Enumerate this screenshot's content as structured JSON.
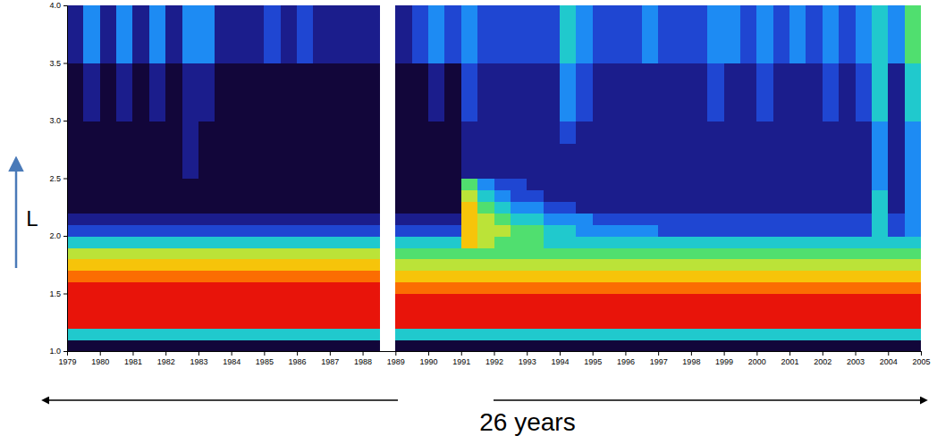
{
  "chart_data": {
    "type": "heatmap",
    "x": [
      1979,
      1979.5,
      1980,
      1980.5,
      1981,
      1981.5,
      1982,
      1982.5,
      1983,
      1983.5,
      1984,
      1984.5,
      1985,
      1985.5,
      1986,
      1986.5,
      1987,
      1987.5,
      1988,
      1988.5,
      1989,
      1989.5,
      1990,
      1990.5,
      1991,
      1991.5,
      1992,
      1992.5,
      1993,
      1993.5,
      1994,
      1994.5,
      1995,
      1995.5,
      1996,
      1996.5,
      1997,
      1997.5,
      1998,
      1998.5,
      1999,
      1999.5,
      2000,
      2000.5,
      2001,
      2001.5,
      2002,
      2002.5,
      2003,
      2003.5,
      2004,
      2004.5,
      2005
    ],
    "y": [
      1,
      1.1,
      1.2,
      1.3,
      1.4,
      1.5,
      1.6,
      1.7,
      1.8,
      1.9,
      2,
      2.1,
      2.2,
      2.3,
      2.4,
      2.5,
      2.6,
      2.7,
      2.8,
      2.9,
      3,
      3.1,
      3.2,
      3.3,
      3.4,
      3.5,
      3.6,
      3.7,
      3.8,
      3.9,
      4
    ],
    "values": [
      [
        0,
        0,
        0,
        0,
        0,
        0,
        0,
        0,
        0,
        0,
        0,
        0,
        0,
        0,
        0,
        0,
        0,
        0,
        0,
        null,
        0,
        0,
        0,
        0,
        0,
        0,
        0,
        0,
        0,
        0,
        0,
        0,
        0,
        0,
        0,
        0,
        0,
        0,
        0,
        0,
        0,
        0,
        0,
        0,
        0,
        0,
        0,
        0,
        0,
        0,
        0,
        0
      ],
      [
        4,
        4,
        4,
        4,
        4,
        4,
        4,
        4,
        4,
        4,
        4,
        4,
        4,
        4,
        4,
        4,
        4,
        4,
        4,
        null,
        4,
        4,
        4,
        4,
        4,
        4,
        4,
        4,
        4,
        4,
        4,
        4,
        4,
        4,
        4,
        4,
        4,
        4,
        4,
        4,
        4,
        4,
        4,
        4,
        4,
        4,
        4,
        4,
        4,
        4,
        4,
        4
      ],
      [
        9,
        9,
        9,
        9,
        9,
        9,
        9,
        9,
        9,
        9,
        9,
        9,
        9,
        9,
        9,
        9,
        9,
        9,
        9,
        null,
        9,
        9,
        9,
        9,
        9,
        9,
        9,
        9,
        9,
        9,
        9,
        9,
        9,
        9,
        9,
        9,
        9,
        9,
        9,
        9,
        9,
        9,
        9,
        9,
        9,
        9,
        9,
        9,
        9,
        9,
        9,
        9
      ],
      [
        9,
        9,
        9,
        9,
        9,
        9,
        9,
        9,
        9,
        9,
        9,
        9,
        9,
        9,
        9,
        9,
        9,
        9,
        9,
        null,
        9,
        9,
        9,
        9,
        9,
        9,
        9,
        9,
        9,
        9,
        9,
        9,
        9,
        9,
        9,
        9,
        9,
        9,
        9,
        9,
        9,
        9,
        9,
        9,
        9,
        9,
        9,
        9,
        9,
        9,
        9,
        9
      ],
      [
        9,
        9,
        9,
        9,
        9,
        9,
        9,
        9,
        9,
        9,
        9,
        9,
        9,
        9,
        9,
        9,
        9,
        9,
        9,
        null,
        9,
        9,
        9,
        9,
        9,
        9,
        9,
        9,
        9,
        9,
        9,
        9,
        9,
        9,
        9,
        9,
        9,
        9,
        9,
        9,
        9,
        9,
        9,
        9,
        9,
        9,
        9,
        9,
        9,
        9,
        9,
        9
      ],
      [
        9,
        9,
        9,
        9,
        9,
        9,
        9,
        9,
        9,
        9,
        9,
        9,
        9,
        9,
        9,
        9,
        9,
        9,
        9,
        null,
        8,
        8,
        8,
        8,
        8,
        8,
        8,
        8,
        8,
        8,
        8,
        8,
        8,
        8,
        8,
        8,
        8,
        8,
        8,
        8,
        8,
        8,
        8,
        8,
        8,
        8,
        8,
        8,
        8,
        8,
        8,
        8
      ],
      [
        8,
        8,
        8,
        8,
        8,
        8,
        8,
        8,
        8,
        8,
        8,
        8,
        8,
        8,
        8,
        8,
        8,
        8,
        8,
        null,
        7,
        7,
        7,
        7,
        7,
        7,
        7,
        7,
        7,
        7,
        7,
        7,
        7,
        7,
        7,
        7,
        7,
        7,
        7,
        7,
        7,
        7,
        7,
        7,
        7,
        7,
        7,
        7,
        7,
        7,
        7,
        7
      ],
      [
        7,
        7,
        7,
        7,
        7,
        7,
        7,
        7,
        7,
        7,
        7,
        7,
        7,
        7,
        7,
        7,
        7,
        7,
        7,
        null,
        6,
        6,
        6,
        6,
        6,
        6,
        6,
        6,
        6,
        6,
        6,
        6,
        6,
        6,
        6,
        6,
        6,
        6,
        6,
        6,
        6,
        6,
        6,
        6,
        6,
        6,
        6,
        6,
        6,
        6,
        6,
        6
      ],
      [
        6,
        6,
        6,
        6,
        6,
        6,
        6,
        6,
        6,
        6,
        6,
        6,
        6,
        6,
        6,
        6,
        6,
        6,
        6,
        null,
        5,
        5,
        5,
        5,
        5,
        5,
        5,
        5,
        5,
        5,
        5,
        5,
        5,
        5,
        5,
        5,
        5,
        5,
        5,
        5,
        5,
        5,
        5,
        5,
        5,
        5,
        5,
        5,
        5,
        5,
        5,
        5
      ],
      [
        4,
        4,
        4,
        4,
        4,
        4,
        4,
        4,
        4,
        4,
        4,
        4,
        4,
        4,
        4,
        4,
        4,
        4,
        4,
        null,
        4,
        4,
        4,
        4,
        7,
        6,
        5,
        5,
        5,
        4,
        4,
        4,
        4,
        4,
        4,
        4,
        4,
        4,
        4,
        4,
        4,
        4,
        4,
        4,
        4,
        4,
        4,
        4,
        4,
        4,
        4,
        4
      ],
      [
        2,
        2,
        2,
        2,
        2,
        2,
        2,
        2,
        2,
        2,
        2,
        2,
        2,
        2,
        2,
        2,
        2,
        2,
        2,
        null,
        2,
        2,
        2,
        2,
        7,
        6,
        6,
        5,
        5,
        4,
        4,
        3,
        3,
        3,
        3,
        3,
        2,
        2,
        2,
        2,
        2,
        2,
        2,
        2,
        2,
        2,
        2,
        2,
        2,
        4,
        2,
        3
      ],
      [
        1,
        1,
        1,
        1,
        1,
        1,
        1,
        1,
        1,
        1,
        1,
        1,
        1,
        1,
        1,
        1,
        1,
        1,
        1,
        null,
        1,
        1,
        1,
        1,
        7,
        6,
        5,
        4,
        4,
        3,
        3,
        3,
        2,
        2,
        2,
        2,
        2,
        2,
        2,
        2,
        2,
        2,
        2,
        2,
        2,
        2,
        2,
        2,
        2,
        4,
        2,
        3
      ],
      [
        0,
        0,
        0,
        0,
        0,
        0,
        0,
        0,
        0,
        0,
        0,
        0,
        0,
        0,
        0,
        0,
        0,
        0,
        0,
        null,
        0,
        0,
        0,
        0,
        7,
        5,
        4,
        3,
        3,
        2,
        2,
        1,
        1,
        1,
        1,
        1,
        1,
        1,
        1,
        1,
        1,
        1,
        1,
        1,
        1,
        1,
        1,
        1,
        1,
        4,
        1,
        3
      ],
      [
        0,
        0,
        0,
        0,
        0,
        0,
        0,
        0,
        0,
        0,
        0,
        0,
        0,
        0,
        0,
        0,
        0,
        0,
        0,
        null,
        0,
        0,
        0,
        0,
        6,
        4,
        3,
        2,
        2,
        1,
        1,
        1,
        1,
        1,
        1,
        1,
        1,
        1,
        1,
        1,
        1,
        1,
        1,
        1,
        1,
        1,
        1,
        1,
        1,
        4,
        1,
        3
      ],
      [
        0,
        0,
        0,
        0,
        0,
        0,
        0,
        0,
        0,
        0,
        0,
        0,
        0,
        0,
        0,
        0,
        0,
        0,
        0,
        null,
        0,
        0,
        0,
        0,
        5,
        3,
        2,
        2,
        1,
        1,
        1,
        1,
        1,
        1,
        1,
        1,
        1,
        1,
        1,
        1,
        1,
        1,
        1,
        1,
        1,
        1,
        1,
        1,
        1,
        3,
        1,
        3
      ],
      [
        0,
        0,
        0,
        0,
        0,
        0,
        0,
        1,
        0,
        0,
        0,
        0,
        0,
        0,
        0,
        0,
        0,
        0,
        0,
        null,
        0,
        0,
        0,
        0,
        1,
        1,
        1,
        1,
        1,
        1,
        1,
        1,
        1,
        1,
        1,
        1,
        1,
        1,
        1,
        1,
        1,
        1,
        1,
        1,
        1,
        1,
        1,
        1,
        1,
        3,
        1,
        3
      ],
      [
        0,
        0,
        0,
        0,
        0,
        0,
        0,
        1,
        0,
        0,
        0,
        0,
        0,
        0,
        0,
        0,
        0,
        0,
        0,
        null,
        0,
        0,
        0,
        0,
        1,
        1,
        1,
        1,
        1,
        1,
        1,
        1,
        1,
        1,
        1,
        1,
        1,
        1,
        1,
        1,
        1,
        1,
        1,
        1,
        1,
        1,
        1,
        1,
        1,
        3,
        1,
        3
      ],
      [
        0,
        0,
        0,
        0,
        0,
        0,
        0,
        1,
        0,
        0,
        0,
        0,
        0,
        0,
        0,
        0,
        0,
        0,
        0,
        null,
        0,
        0,
        0,
        0,
        1,
        1,
        1,
        1,
        1,
        1,
        1,
        1,
        1,
        1,
        1,
        1,
        1,
        1,
        1,
        1,
        1,
        1,
        1,
        1,
        1,
        1,
        1,
        1,
        1,
        3,
        1,
        3
      ],
      [
        0,
        0,
        0,
        0,
        0,
        0,
        0,
        1,
        0,
        0,
        0,
        0,
        0,
        0,
        0,
        0,
        0,
        0,
        0,
        null,
        0,
        0,
        0,
        0,
        1,
        1,
        1,
        1,
        1,
        1,
        2,
        1,
        1,
        1,
        1,
        1,
        1,
        1,
        1,
        1,
        1,
        1,
        1,
        1,
        1,
        1,
        1,
        1,
        1,
        3,
        1,
        3
      ],
      [
        0,
        0,
        0,
        0,
        0,
        0,
        0,
        1,
        0,
        0,
        0,
        0,
        0,
        0,
        0,
        0,
        0,
        0,
        0,
        null,
        0,
        0,
        0,
        0,
        1,
        1,
        1,
        1,
        1,
        1,
        2,
        1,
        1,
        1,
        1,
        1,
        1,
        1,
        1,
        1,
        1,
        1,
        1,
        1,
        1,
        1,
        1,
        1,
        1,
        3,
        1,
        3
      ],
      [
        0,
        1,
        0,
        1,
        0,
        1,
        0,
        1,
        1,
        0,
        0,
        0,
        0,
        0,
        0,
        0,
        0,
        0,
        0,
        null,
        0,
        0,
        1,
        0,
        2,
        1,
        1,
        1,
        1,
        1,
        3,
        2,
        1,
        1,
        1,
        1,
        1,
        1,
        1,
        2,
        1,
        1,
        2,
        1,
        1,
        1,
        2,
        1,
        2,
        4,
        1,
        4
      ],
      [
        0,
        1,
        0,
        1,
        0,
        1,
        0,
        1,
        1,
        0,
        0,
        0,
        0,
        0,
        0,
        0,
        0,
        0,
        0,
        null,
        0,
        0,
        1,
        0,
        2,
        1,
        1,
        1,
        1,
        1,
        3,
        2,
        1,
        1,
        1,
        1,
        1,
        1,
        1,
        2,
        1,
        1,
        2,
        1,
        1,
        1,
        2,
        1,
        2,
        4,
        1,
        4
      ],
      [
        0,
        1,
        0,
        1,
        0,
        1,
        0,
        1,
        1,
        0,
        0,
        0,
        0,
        0,
        0,
        0,
        0,
        0,
        0,
        null,
        0,
        0,
        1,
        0,
        2,
        1,
        1,
        1,
        1,
        1,
        3,
        2,
        1,
        1,
        1,
        1,
        1,
        1,
        1,
        2,
        1,
        1,
        2,
        1,
        1,
        1,
        2,
        1,
        2,
        4,
        1,
        4
      ],
      [
        0,
        1,
        0,
        1,
        0,
        1,
        0,
        1,
        1,
        0,
        0,
        0,
        0,
        0,
        0,
        0,
        0,
        0,
        0,
        null,
        0,
        0,
        1,
        0,
        2,
        1,
        1,
        1,
        1,
        1,
        3,
        2,
        1,
        1,
        1,
        1,
        1,
        1,
        1,
        2,
        1,
        1,
        2,
        1,
        1,
        1,
        2,
        1,
        2,
        4,
        1,
        4
      ],
      [
        0,
        1,
        0,
        1,
        0,
        1,
        0,
        1,
        1,
        0,
        0,
        0,
        0,
        0,
        0,
        0,
        0,
        0,
        0,
        null,
        0,
        0,
        1,
        0,
        2,
        1,
        1,
        1,
        1,
        1,
        3,
        2,
        1,
        1,
        1,
        1,
        1,
        1,
        1,
        2,
        1,
        1,
        2,
        1,
        1,
        1,
        2,
        1,
        2,
        4,
        1,
        4
      ],
      [
        1,
        3,
        1,
        3,
        1,
        3,
        1,
        3,
        3,
        1,
        1,
        1,
        2,
        1,
        2,
        1,
        1,
        1,
        1,
        null,
        1,
        2,
        3,
        2,
        3,
        2,
        2,
        2,
        2,
        2,
        4,
        3,
        2,
        2,
        2,
        3,
        2,
        2,
        2,
        3,
        3,
        2,
        3,
        2,
        3,
        2,
        3,
        2,
        3,
        4,
        3,
        5
      ],
      [
        1,
        3,
        1,
        3,
        1,
        3,
        1,
        3,
        3,
        1,
        1,
        1,
        2,
        1,
        2,
        1,
        1,
        1,
        1,
        null,
        1,
        2,
        3,
        2,
        3,
        2,
        2,
        2,
        2,
        2,
        4,
        3,
        2,
        2,
        2,
        3,
        2,
        2,
        2,
        3,
        3,
        2,
        3,
        2,
        3,
        2,
        3,
        2,
        3,
        4,
        3,
        5
      ],
      [
        1,
        3,
        1,
        3,
        1,
        3,
        1,
        3,
        3,
        1,
        1,
        1,
        2,
        1,
        2,
        1,
        1,
        1,
        1,
        null,
        1,
        2,
        3,
        2,
        3,
        2,
        2,
        2,
        2,
        2,
        4,
        3,
        2,
        2,
        2,
        3,
        2,
        2,
        2,
        3,
        3,
        2,
        3,
        2,
        3,
        2,
        3,
        2,
        3,
        4,
        3,
        5
      ],
      [
        1,
        3,
        1,
        3,
        1,
        3,
        1,
        3,
        3,
        1,
        1,
        1,
        2,
        1,
        2,
        1,
        1,
        1,
        1,
        null,
        1,
        2,
        3,
        2,
        3,
        2,
        2,
        2,
        2,
        2,
        4,
        3,
        2,
        2,
        2,
        3,
        2,
        2,
        2,
        3,
        3,
        2,
        3,
        2,
        3,
        2,
        3,
        2,
        3,
        4,
        3,
        5
      ],
      [
        1,
        3,
        1,
        3,
        1,
        3,
        1,
        3,
        3,
        1,
        1,
        1,
        2,
        1,
        2,
        1,
        1,
        1,
        1,
        null,
        1,
        2,
        3,
        2,
        3,
        2,
        2,
        2,
        2,
        2,
        4,
        3,
        2,
        2,
        2,
        3,
        2,
        2,
        2,
        3,
        3,
        2,
        3,
        2,
        3,
        2,
        3,
        2,
        3,
        4,
        3,
        5
      ]
    ],
    "zlim": [
      0,
      9
    ],
    "xlim": [
      1979,
      2005
    ],
    "xticks": [
      1979,
      1980,
      1981,
      1982,
      1983,
      1984,
      1985,
      1986,
      1987,
      1988,
      1989,
      1990,
      1991,
      1992,
      1993,
      1994,
      1995,
      1996,
      1997,
      1998,
      1999,
      2000,
      2001,
      2002,
      2003,
      2004,
      2005
    ],
    "ylim": [
      1,
      4
    ],
    "yticks": [
      {
        "value": 1,
        "label": "1.0"
      },
      1.5,
      {
        "value": 2,
        "label": "2.0"
      },
      2.5,
      {
        "value": 3,
        "label": "3.0"
      },
      3.5,
      {
        "value": 4,
        "label": "4.0"
      }
    ],
    "y_label": "L",
    "annotation": "26 years"
  }
}
